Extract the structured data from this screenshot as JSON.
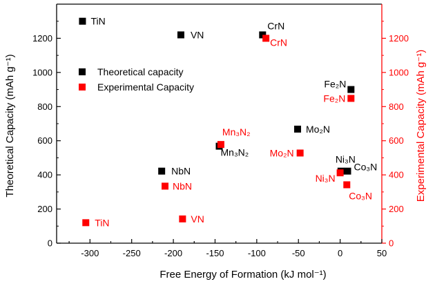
{
  "chart_data": {
    "type": "scatter",
    "xlabel": "Free Energy of Formation (kJ mol⁻¹)",
    "ylabel_left": "Theoretical Capacity (mAh g⁻¹)",
    "ylabel_right": "Experimental Capacity (mAh g⁻¹)",
    "xlim": [
      -340,
      50
    ],
    "ylim": [
      0,
      1400
    ],
    "x_ticks": [
      -300,
      -250,
      -200,
      -150,
      -100,
      -50,
      0,
      50
    ],
    "y_ticks": [
      0,
      200,
      400,
      600,
      800,
      1000,
      1200
    ],
    "grid": false,
    "legend_placement": "upper-left",
    "colors": {
      "theoretical": "#000000",
      "experimental": "#ff0000",
      "right_axis": "#ff0000"
    },
    "series": [
      {
        "name": "Theoretical capacity",
        "color": "#000000",
        "points": [
          {
            "label": "TiN",
            "x": -309,
            "y": 1300
          },
          {
            "label": "VN",
            "x": -191,
            "y": 1220
          },
          {
            "label": "CrN",
            "x": -93,
            "y": 1220
          },
          {
            "label": "Fe₂N",
            "x": 13,
            "y": 900
          },
          {
            "label": "Mo₂N",
            "x": -51,
            "y": 668
          },
          {
            "label": "Mn₃N₂",
            "x": -145,
            "y": 568
          },
          {
            "label": "NbN",
            "x": -214,
            "y": 422
          },
          {
            "label": "Ni₃N",
            "x": 1,
            "y": 422
          },
          {
            "label": "Co₃N",
            "x": 9,
            "y": 422
          }
        ]
      },
      {
        "name": "Experimental Capacity",
        "color": "#ff0000",
        "points": [
          {
            "label": "CrN",
            "x": -89,
            "y": 1200
          },
          {
            "label": "Fe₂N",
            "x": 13,
            "y": 848
          },
          {
            "label": "Mn₃N₂",
            "x": -143,
            "y": 578
          },
          {
            "label": "Mo₂N",
            "x": -48,
            "y": 528
          },
          {
            "label": "Ni₃N",
            "x": 0,
            "y": 412
          },
          {
            "label": "Co₃N",
            "x": 8,
            "y": 342
          },
          {
            "label": "NbN",
            "x": -210,
            "y": 334
          },
          {
            "label": "VN",
            "x": -189,
            "y": 142
          },
          {
            "label": "TiN",
            "x": -305,
            "y": 120
          }
        ]
      }
    ]
  }
}
